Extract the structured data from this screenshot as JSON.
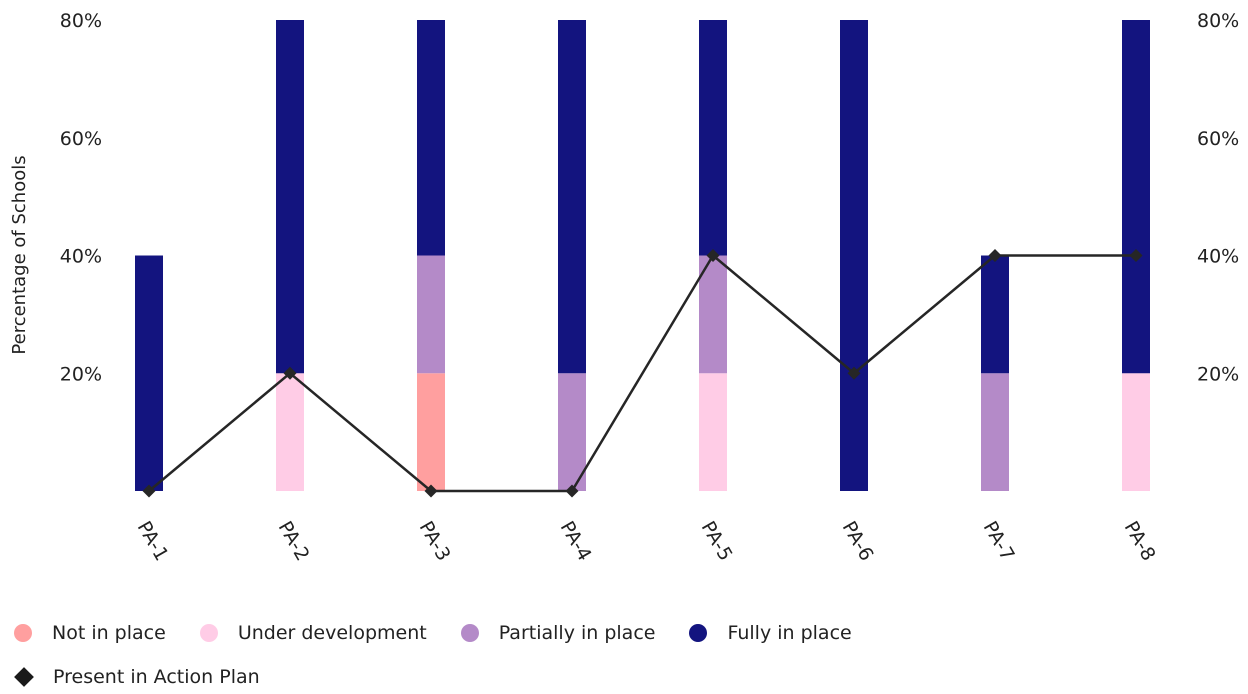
{
  "chart_data": {
    "type": "bar",
    "stacked": true,
    "categories": [
      "PA-1",
      "PA-2",
      "PA-3",
      "PA-4",
      "PA-5",
      "PA-6",
      "PA-7",
      "PA-8"
    ],
    "series": [
      {
        "name": "Not in place",
        "color": "#ff9f9f",
        "values": [
          0,
          0,
          20,
          0,
          0,
          0,
          0,
          0
        ]
      },
      {
        "name": "Under development",
        "color": "#ffcce6",
        "values": [
          0,
          20,
          0,
          0,
          20,
          0,
          0,
          20
        ]
      },
      {
        "name": "Partially in place",
        "color": "#b48ac8",
        "values": [
          0,
          0,
          20,
          20,
          20,
          0,
          20,
          0
        ]
      },
      {
        "name": "Fully in place",
        "color": "#13147f",
        "values": [
          40,
          60,
          40,
          60,
          40,
          80,
          20,
          60
        ]
      }
    ],
    "line_series": {
      "name": "Present in Action Plan",
      "color": "#262626",
      "marker": "diamond",
      "values": [
        0,
        20,
        0,
        0,
        40,
        20,
        40,
        40
      ]
    },
    "ylabel": "Percentage of Schools",
    "xlabel": "",
    "ylim": [
      0,
      80
    ],
    "y_ticks": [
      "20%",
      "40%",
      "60%",
      "80%"
    ],
    "y_tick_values": [
      20,
      40,
      60,
      80
    ],
    "secondary_y_axis": true,
    "grid": false,
    "legend_position": "bottom-left"
  },
  "legend": {
    "items": [
      {
        "label": "Not in place",
        "color": "#ff9f9f"
      },
      {
        "label": "Under development",
        "color": "#ffcce6"
      },
      {
        "label": "Partially in place",
        "color": "#b48ac8"
      },
      {
        "label": "Fully in place",
        "color": "#13147f"
      }
    ],
    "line_label": "Present in Action Plan"
  }
}
